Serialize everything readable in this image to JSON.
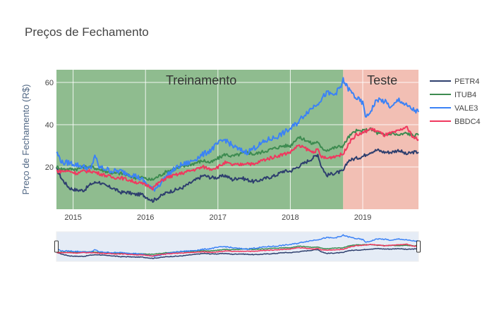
{
  "chart_data": {
    "type": "line",
    "title": "Preços de Fechamento",
    "ylabel": "Preço de Fechamento (R$)",
    "xlabel": "",
    "x_range": [
      2014.77,
      2019.77
    ],
    "y_range": [
      0,
      66
    ],
    "x_ticks": [
      {
        "value": 2015,
        "label": "2015"
      },
      {
        "value": 2016,
        "label": "2016"
      },
      {
        "value": 2017,
        "label": "2017"
      },
      {
        "value": 2018,
        "label": "2018"
      },
      {
        "value": 2019,
        "label": "2019"
      }
    ],
    "y_ticks": [
      {
        "value": 20,
        "label": "20"
      },
      {
        "value": 40,
        "label": "40"
      },
      {
        "value": 60,
        "label": "60"
      }
    ],
    "grid": true,
    "legend_position": "right",
    "regions": [
      {
        "label": "Treinamento",
        "x_start": 2014.77,
        "x_end": 2018.73,
        "color": "#8fbc8f"
      },
      {
        "label": "Teste",
        "x_start": 2018.73,
        "x_end": 2019.77,
        "color": "#f2bfb4"
      }
    ],
    "series": [
      {
        "name": "PETR4",
        "color": "#2e3f6e",
        "x": [
          2014.77,
          2014.85,
          2014.95,
          2015.05,
          2015.15,
          2015.25,
          2015.35,
          2015.45,
          2015.55,
          2015.65,
          2015.75,
          2015.85,
          2015.95,
          2016.05,
          2016.1,
          2016.2,
          2016.3,
          2016.4,
          2016.5,
          2016.6,
          2016.7,
          2016.8,
          2016.9,
          2017.0,
          2017.1,
          2017.2,
          2017.3,
          2017.4,
          2017.5,
          2017.6,
          2017.7,
          2017.8,
          2017.9,
          2018.0,
          2018.1,
          2018.2,
          2018.3,
          2018.38,
          2018.42,
          2018.5,
          2018.6,
          2018.73,
          2018.8,
          2018.9,
          2019.0,
          2019.1,
          2019.2,
          2019.3,
          2019.4,
          2019.5,
          2019.6,
          2019.7,
          2019.77
        ],
        "y": [
          19,
          14,
          10,
          9,
          9,
          12,
          13,
          11,
          10,
          8,
          8,
          7,
          7,
          5,
          4,
          6,
          8,
          9,
          10,
          12,
          14,
          16,
          15,
          15,
          16,
          14,
          15,
          14,
          13,
          14,
          15,
          16,
          18,
          18,
          20,
          22,
          24,
          26,
          21,
          16,
          17,
          18,
          23,
          24,
          25,
          27,
          28,
          27,
          27,
          28,
          26,
          27,
          27
        ]
      },
      {
        "name": "ITUB4",
        "color": "#3d8b50",
        "x": [
          2014.77,
          2014.85,
          2014.95,
          2015.05,
          2015.15,
          2015.25,
          2015.35,
          2015.45,
          2015.55,
          2015.65,
          2015.75,
          2015.85,
          2015.95,
          2016.05,
          2016.1,
          2016.2,
          2016.3,
          2016.4,
          2016.5,
          2016.6,
          2016.7,
          2016.8,
          2016.9,
          2017.0,
          2017.1,
          2017.2,
          2017.3,
          2017.4,
          2017.5,
          2017.6,
          2017.7,
          2017.8,
          2017.9,
          2018.0,
          2018.1,
          2018.2,
          2018.3,
          2018.38,
          2018.42,
          2018.5,
          2018.6,
          2018.73,
          2018.8,
          2018.9,
          2019.0,
          2019.1,
          2019.2,
          2019.3,
          2019.4,
          2019.5,
          2019.6,
          2019.7,
          2019.77
        ],
        "y": [
          20,
          19,
          19,
          19,
          20,
          20,
          19,
          18,
          17,
          17,
          16,
          15,
          15,
          14,
          14,
          16,
          18,
          19,
          20,
          21,
          22,
          23,
          22,
          24,
          26,
          25,
          26,
          27,
          26,
          27,
          28,
          29,
          30,
          30,
          34,
          33,
          31,
          32,
          29,
          28,
          29,
          30,
          34,
          37,
          37,
          38,
          36,
          35,
          36,
          35,
          36,
          35,
          35
        ]
      },
      {
        "name": "VALE3",
        "color": "#3b82f6",
        "x": [
          2014.77,
          2014.85,
          2014.95,
          2015.05,
          2015.15,
          2015.25,
          2015.3,
          2015.35,
          2015.45,
          2015.55,
          2015.65,
          2015.75,
          2015.85,
          2015.95,
          2016.05,
          2016.1,
          2016.2,
          2016.3,
          2016.4,
          2016.5,
          2016.6,
          2016.7,
          2016.8,
          2016.9,
          2017.0,
          2017.1,
          2017.2,
          2017.3,
          2017.4,
          2017.5,
          2017.6,
          2017.7,
          2017.8,
          2017.9,
          2018.0,
          2018.1,
          2018.2,
          2018.3,
          2018.4,
          2018.5,
          2018.6,
          2018.7,
          2018.73,
          2018.8,
          2018.9,
          2019.0,
          2019.05,
          2019.1,
          2019.2,
          2019.3,
          2019.4,
          2019.5,
          2019.6,
          2019.7,
          2019.77
        ],
        "y": [
          27,
          22,
          22,
          21,
          20,
          19,
          26,
          20,
          19,
          18,
          18,
          17,
          16,
          14,
          11,
          9,
          12,
          16,
          19,
          21,
          22,
          24,
          26,
          28,
          31,
          33,
          30,
          28,
          27,
          29,
          31,
          33,
          34,
          36,
          38,
          41,
          45,
          48,
          51,
          55,
          54,
          58,
          61,
          57,
          53,
          50,
          43,
          46,
          52,
          51,
          48,
          52,
          49,
          47,
          46
        ]
      },
      {
        "name": "BBDC4",
        "color": "#f0385f",
        "x": [
          2014.77,
          2014.85,
          2014.95,
          2015.05,
          2015.15,
          2015.25,
          2015.35,
          2015.45,
          2015.55,
          2015.65,
          2015.75,
          2015.85,
          2015.95,
          2016.05,
          2016.1,
          2016.2,
          2016.3,
          2016.4,
          2016.5,
          2016.6,
          2016.7,
          2016.8,
          2016.9,
          2017.0,
          2017.1,
          2017.2,
          2017.3,
          2017.4,
          2017.5,
          2017.6,
          2017.7,
          2017.8,
          2017.9,
          2018.0,
          2018.1,
          2018.2,
          2018.3,
          2018.38,
          2018.42,
          2018.5,
          2018.6,
          2018.73,
          2018.8,
          2018.9,
          2019.0,
          2019.1,
          2019.2,
          2019.3,
          2019.4,
          2019.5,
          2019.6,
          2019.7,
          2019.77
        ],
        "y": [
          18,
          18,
          18,
          17,
          18,
          18,
          17,
          16,
          15,
          15,
          14,
          13,
          12,
          11,
          10,
          13,
          15,
          16,
          17,
          18,
          19,
          20,
          19,
          20,
          22,
          21,
          21,
          22,
          21,
          23,
          24,
          25,
          26,
          27,
          30,
          29,
          27,
          28,
          25,
          24,
          25,
          26,
          31,
          35,
          36,
          38,
          37,
          35,
          36,
          37,
          39,
          34,
          33
        ]
      }
    ]
  }
}
